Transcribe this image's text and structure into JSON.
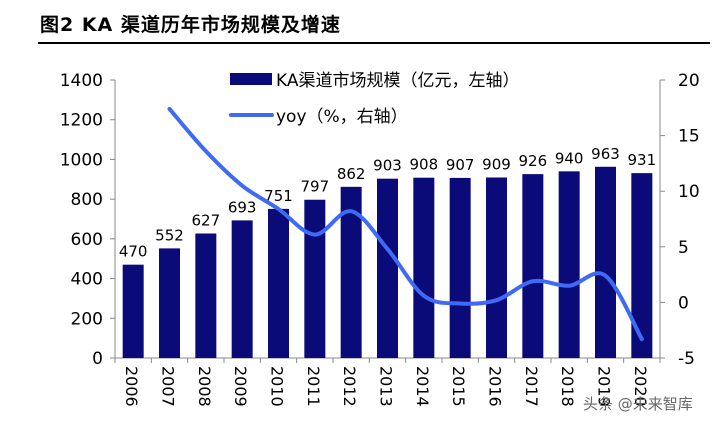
{
  "figure_title": "图2  KA 渠道历年市场规模及增速",
  "watermark": "头条 @未来智库",
  "chart_data": {
    "type": "bar+line",
    "categories": [
      "2006",
      "2007",
      "2008",
      "2009",
      "2010",
      "2011",
      "2012",
      "2013",
      "2014",
      "2015",
      "2016",
      "2017",
      "2018",
      "2019",
      "2020"
    ],
    "series": [
      {
        "name": "KA渠道市场规模（亿元，左轴）",
        "type": "bar",
        "axis": "left",
        "color": "#0a0a78",
        "values": [
          470,
          552,
          627,
          693,
          751,
          797,
          862,
          903,
          908,
          907,
          909,
          926,
          940,
          963,
          931
        ]
      },
      {
        "name": "yoy（%，右轴）",
        "type": "line",
        "axis": "right",
        "color": "#3f6af5",
        "values": [
          null,
          17.4,
          13.6,
          10.5,
          8.4,
          6.1,
          8.2,
          4.8,
          0.6,
          -0.1,
          0.2,
          1.9,
          1.5,
          2.4,
          -3.3
        ]
      }
    ],
    "left_axis": {
      "range": [
        0,
        1400
      ],
      "ticks": [
        0,
        200,
        400,
        600,
        800,
        1000,
        1200,
        1400
      ]
    },
    "right_axis": {
      "range": [
        -5,
        20
      ],
      "ticks": [
        -5,
        0,
        5,
        10,
        15,
        20
      ]
    },
    "legend_placement": "top-center",
    "grid": false
  }
}
